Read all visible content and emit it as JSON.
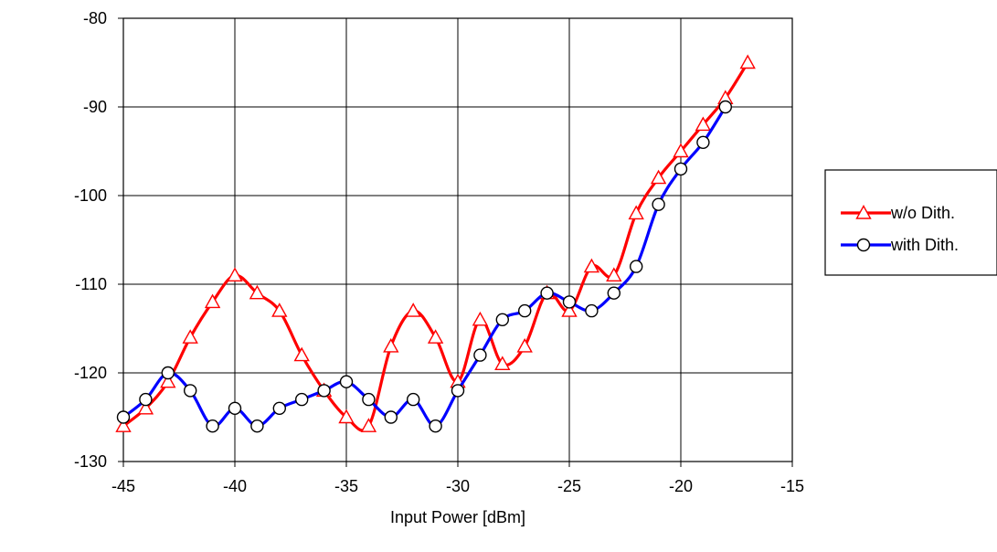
{
  "chart_data": {
    "type": "line",
    "title": "",
    "xlabel": "Input Power [dBm]",
    "ylabel": "",
    "xlim": [
      -45,
      -15
    ],
    "ylim": [
      -130,
      -80
    ],
    "xticks": [
      -45,
      -40,
      -35,
      -30,
      -25,
      -20,
      -15
    ],
    "yticks": [
      -130,
      -120,
      -110,
      -100,
      -90,
      -80
    ],
    "grid": true,
    "legend_position": "right",
    "series": [
      {
        "name": "w/o Dith.",
        "color": "#ff0000",
        "marker": "triangle",
        "x": [
          -45,
          -44,
          -43,
          -42,
          -41,
          -40,
          -39,
          -38,
          -37,
          -36,
          -35,
          -34,
          -33,
          -32,
          -31,
          -30,
          -29,
          -28,
          -27,
          -26,
          -25,
          -24,
          -23,
          -22,
          -21,
          -20,
          -19,
          -18,
          -17
        ],
        "y": [
          -126,
          -124,
          -121,
          -116,
          -112,
          -109,
          -111,
          -113,
          -118,
          -122,
          -125,
          -126,
          -117,
          -113,
          -116,
          -121,
          -114,
          -119,
          -117,
          -111,
          -113,
          -108,
          -109,
          -102,
          -98,
          -95,
          -92,
          -89,
          -85
        ]
      },
      {
        "name": "with Dith.",
        "color": "#0000ff",
        "marker": "circle",
        "x": [
          -45,
          -44,
          -43,
          -42,
          -41,
          -40,
          -39,
          -38,
          -37,
          -36,
          -35,
          -34,
          -33,
          -32,
          -31,
          -30,
          -29,
          -28,
          -27,
          -26,
          -25,
          -24,
          -23,
          -22,
          -21,
          -20,
          -19,
          -18
        ],
        "y": [
          -125,
          -123,
          -120,
          -122,
          -126,
          -124,
          -126,
          -124,
          -123,
          -122,
          -121,
          -123,
          -125,
          -123,
          -126,
          -122,
          -118,
          -114,
          -113,
          -111,
          -112,
          -113,
          -111,
          -108,
          -101,
          -97,
          -94,
          -90
        ]
      }
    ]
  }
}
